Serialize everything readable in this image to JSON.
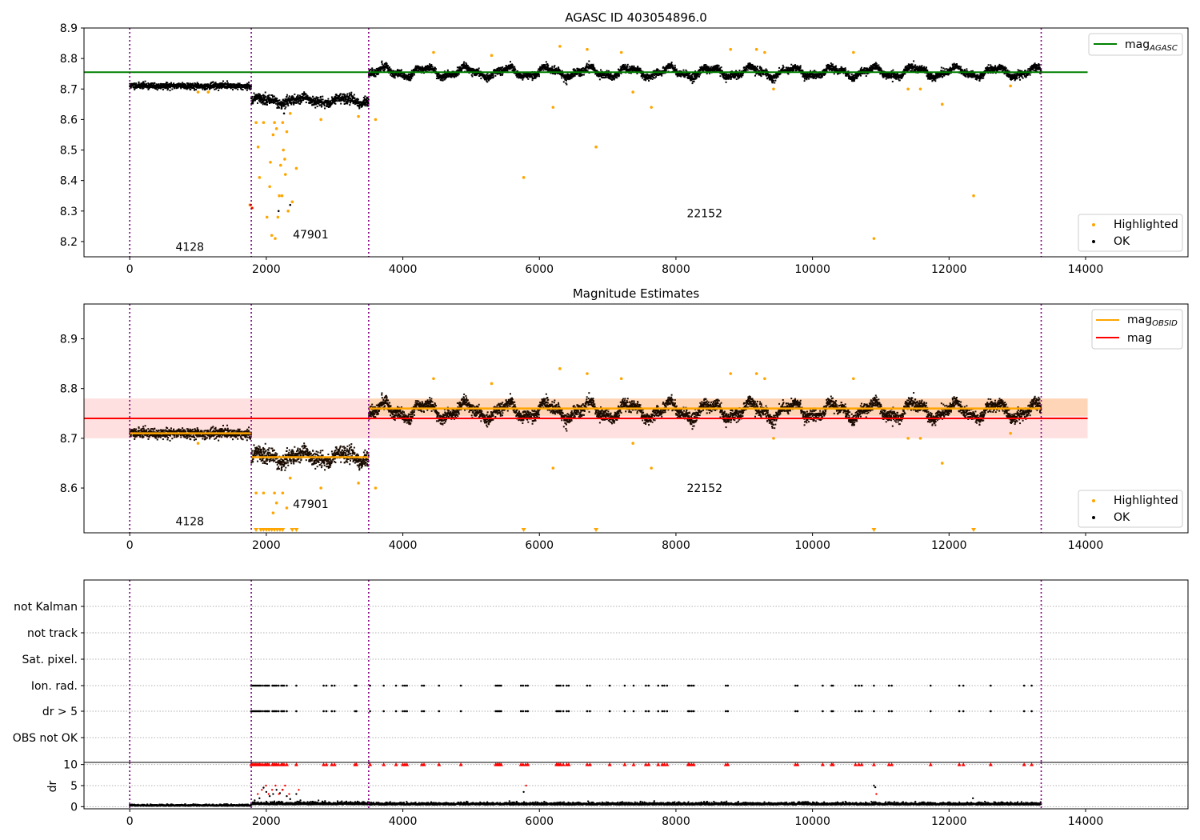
{
  "chart_data": [
    {
      "type": "scatter",
      "title": "AGASC ID 403054896.0",
      "xlim": [
        -670,
        15500
      ],
      "ylim": [
        8.15,
        8.9
      ],
      "x_ticks": [
        0,
        2000,
        4000,
        6000,
        8000,
        10000,
        12000,
        14000
      ],
      "y_ticks": [
        8.2,
        8.3,
        8.4,
        8.5,
        8.6,
        8.7,
        8.8,
        8.9
      ],
      "grid": false,
      "obs_boundaries": [
        0,
        1780,
        3500,
        13350
      ],
      "obs_labels": [
        {
          "text": "4128",
          "x": 880,
          "y": 8.17
        },
        {
          "text": "47901",
          "x": 2650,
          "y": 8.21
        },
        {
          "text": "22152",
          "x": 8420,
          "y": 8.28
        }
      ],
      "mag_agasc": {
        "value": 8.755,
        "x_range": [
          -670,
          14030
        ]
      },
      "obs_segments": [
        {
          "x_start": 0,
          "x_end": 1780,
          "center": 8.71,
          "spread": 0.005,
          "wave_amp": 0.002
        },
        {
          "x_start": 1780,
          "x_end": 3500,
          "center": 8.662,
          "spread": 0.008,
          "wave_amp": 0.012
        },
        {
          "x_start": 3500,
          "x_end": 13350,
          "center": 8.755,
          "spread": 0.006,
          "wave_amp": 0.02
        }
      ],
      "highlighted_points": [
        [
          1760,
          8.32
        ],
        [
          1790,
          8.31
        ],
        [
          1850,
          8.59
        ],
        [
          1880,
          8.51
        ],
        [
          1900,
          8.41
        ],
        [
          1960,
          8.59
        ],
        [
          2010,
          8.28
        ],
        [
          2050,
          8.38
        ],
        [
          2060,
          8.46
        ],
        [
          2080,
          8.22
        ],
        [
          2100,
          8.55
        ],
        [
          2120,
          8.59
        ],
        [
          2130,
          8.21
        ],
        [
          2150,
          8.57
        ],
        [
          2170,
          8.28
        ],
        [
          2190,
          8.35
        ],
        [
          2210,
          8.45
        ],
        [
          2230,
          8.35
        ],
        [
          2240,
          8.59
        ],
        [
          2250,
          8.5
        ],
        [
          2270,
          8.47
        ],
        [
          2280,
          8.42
        ],
        [
          2300,
          8.56
        ],
        [
          2320,
          8.3
        ],
        [
          2350,
          8.62
        ],
        [
          2380,
          8.33
        ],
        [
          2440,
          8.44
        ],
        [
          2800,
          8.6
        ],
        [
          3350,
          8.61
        ],
        [
          3600,
          8.6
        ],
        [
          5770,
          8.41
        ],
        [
          6200,
          8.64
        ],
        [
          6830,
          8.51
        ],
        [
          7370,
          8.69
        ],
        [
          7640,
          8.64
        ],
        [
          9430,
          8.7
        ],
        [
          10900,
          8.21
        ],
        [
          11400,
          8.7
        ],
        [
          11580,
          8.7
        ],
        [
          11900,
          8.65
        ],
        [
          12360,
          8.35
        ],
        [
          12900,
          8.71
        ],
        [
          1000,
          8.69
        ],
        [
          1150,
          8.69
        ],
        [
          6300,
          8.84
        ],
        [
          6700,
          8.83
        ],
        [
          7200,
          8.82
        ],
        [
          9180,
          8.83
        ],
        [
          9300,
          8.82
        ],
        [
          10600,
          8.82
        ],
        [
          4450,
          8.82
        ],
        [
          5300,
          8.81
        ],
        [
          8800,
          8.83
        ]
      ],
      "ok_outliers": [
        [
          2180,
          8.3
        ],
        [
          2260,
          8.62
        ],
        [
          2350,
          8.32
        ]
      ],
      "red_points": [
        [
          1770,
          8.32
        ],
        [
          1795,
          8.31
        ]
      ],
      "legends": [
        {
          "position": "upper right",
          "entries": [
            "mag_AGASC"
          ]
        },
        {
          "position": "lower right",
          "entries": [
            "Highlighted",
            "OK"
          ]
        }
      ],
      "legend_text": {
        "mag_agasc": "mag",
        "mag_agasc_sub": "AGASC",
        "highlighted": "Highlighted",
        "ok": "OK"
      }
    },
    {
      "type": "scatter",
      "title": "Magnitude Estimates",
      "xlim": [
        -670,
        15500
      ],
      "ylim": [
        8.51,
        8.97
      ],
      "x_ticks": [
        0,
        2000,
        4000,
        6000,
        8000,
        10000,
        12000,
        14000
      ],
      "y_ticks": [
        8.6,
        8.7,
        8.8,
        8.9
      ],
      "grid": false,
      "obs_boundaries": [
        0,
        1780,
        3500,
        13350
      ],
      "obs_labels": [
        {
          "text": "4128",
          "x": 880,
          "y": 8.525
        },
        {
          "text": "47901",
          "x": 2650,
          "y": 8.56
        },
        {
          "text": "22152",
          "x": 8420,
          "y": 8.592
        }
      ],
      "mag": {
        "value": 8.74,
        "band": [
          8.7,
          8.78
        ],
        "x_range": [
          -670,
          14030
        ]
      },
      "mag_obsid": [
        {
          "x_start": 0,
          "x_end": 1780,
          "value": 8.71
        },
        {
          "x_start": 1780,
          "x_end": 3500,
          "value": 8.662
        },
        {
          "x_start": 3500,
          "x_end": 13350,
          "value": 8.76
        }
      ],
      "obs_band": {
        "x_start": 3500,
        "x_end": 14030,
        "band": [
          8.745,
          8.78
        ]
      },
      "obs_segments": [
        {
          "x_start": 0,
          "x_end": 1780,
          "center": 8.71,
          "spread": 0.005,
          "wave_amp": 0.002
        },
        {
          "x_start": 1780,
          "x_end": 3500,
          "center": 8.662,
          "spread": 0.008,
          "wave_amp": 0.012
        },
        {
          "x_start": 3500,
          "x_end": 13350,
          "center": 8.755,
          "spread": 0.006,
          "wave_amp": 0.02
        }
      ],
      "highlighted_points": [
        [
          1850,
          8.59
        ],
        [
          1960,
          8.59
        ],
        [
          2100,
          8.55
        ],
        [
          2120,
          8.59
        ],
        [
          2150,
          8.57
        ],
        [
          2240,
          8.59
        ],
        [
          2300,
          8.56
        ],
        [
          2350,
          8.62
        ],
        [
          2800,
          8.6
        ],
        [
          3350,
          8.61
        ],
        [
          3600,
          8.6
        ],
        [
          6200,
          8.64
        ],
        [
          7370,
          8.69
        ],
        [
          7640,
          8.64
        ],
        [
          9430,
          8.7
        ],
        [
          11400,
          8.7
        ],
        [
          11580,
          8.7
        ],
        [
          11900,
          8.65
        ],
        [
          12900,
          8.71
        ],
        [
          1000,
          8.69
        ],
        [
          6300,
          8.84
        ],
        [
          6700,
          8.83
        ],
        [
          7200,
          8.82
        ],
        [
          9180,
          8.83
        ],
        [
          9300,
          8.82
        ],
        [
          10600,
          8.82
        ],
        [
          4450,
          8.82
        ],
        [
          5300,
          8.81
        ],
        [
          8800,
          8.83
        ]
      ],
      "clipped_markers_x": [
        1850,
        1920,
        1960,
        2000,
        2040,
        2080,
        2120,
        2160,
        2200,
        2240,
        2380,
        2440,
        5770,
        6830,
        10900,
        12360
      ],
      "legends": [
        {
          "position": "upper right",
          "entries": [
            "mag_OBSID",
            "mag"
          ]
        },
        {
          "position": "lower right",
          "entries": [
            "Highlighted",
            "OK"
          ]
        }
      ],
      "legend_text": {
        "mag_obsid": "mag",
        "mag_obsid_sub": "OBSID",
        "mag": "mag",
        "highlighted": "Highlighted",
        "ok": "OK"
      }
    },
    {
      "type": "scatter",
      "title": "",
      "xlim": [
        -670,
        15500
      ],
      "categories": [
        "not Kalman",
        "not track",
        "Sat. pixel.",
        "Ion. rad.",
        "dr > 5",
        "OBS not OK"
      ],
      "obs_boundaries": [
        0,
        1780,
        3500,
        13350
      ],
      "flag_x": [
        1780,
        1800,
        1820,
        1840,
        1860,
        1880,
        1900,
        1920,
        1950,
        1980,
        2000,
        2020,
        2040,
        2090,
        2110,
        2130,
        2150,
        2180,
        2220,
        2240,
        2260,
        2300,
        2440,
        2840,
        2880,
        2960,
        3000,
        3300,
        3320,
        3520,
        3720,
        3900,
        4000,
        4030,
        4060,
        4280,
        4310,
        4530,
        4850,
        5360,
        5380,
        5400,
        5420,
        5440,
        5730,
        5760,
        5800,
        5830,
        6250,
        6270,
        6290,
        6310,
        6350,
        6400,
        6430,
        6700,
        6740,
        7030,
        7250,
        7380,
        7560,
        7600,
        7740,
        7800,
        7830,
        7870,
        8180,
        8200,
        8230,
        8260,
        8730,
        8760,
        9750,
        9780,
        10150,
        10280,
        10300,
        10630,
        10680,
        10720,
        10900,
        11120,
        11160,
        11730,
        12150,
        12210,
        12610,
        13100,
        13210
      ],
      "rows_with_flags": [
        "Ion. rad.",
        "dr > 5"
      ]
    },
    {
      "type": "scatter",
      "title": "",
      "ylabel": "dr",
      "xlim": [
        -670,
        15500
      ],
      "ylim": [
        -0.5,
        10.5
      ],
      "y_ticks": [
        0,
        5,
        10
      ],
      "x_ticks": [
        0,
        2000,
        4000,
        6000,
        8000,
        10000,
        12000,
        14000
      ],
      "obs_boundaries": [
        0,
        1780,
        3500,
        13350
      ],
      "dr_clip_value": 10,
      "dr_clip_x": [
        1780,
        1800,
        1820,
        1840,
        1860,
        1880,
        1900,
        1920,
        1950,
        1980,
        2000,
        2020,
        2040,
        2090,
        2110,
        2130,
        2150,
        2180,
        2220,
        2240,
        2260,
        2300,
        2440,
        2840,
        2880,
        2960,
        3000,
        3300,
        3320,
        3520,
        3720,
        3900,
        4000,
        4030,
        4060,
        4280,
        4310,
        4530,
        4850,
        5360,
        5380,
        5400,
        5420,
        5440,
        5730,
        5760,
        5800,
        5830,
        6250,
        6270,
        6290,
        6310,
        6350,
        6400,
        6430,
        6700,
        6740,
        7030,
        7250,
        7380,
        7560,
        7600,
        7740,
        7800,
        7830,
        7870,
        8180,
        8200,
        8230,
        8260,
        8730,
        8760,
        9750,
        9780,
        10150,
        10280,
        10300,
        10630,
        10680,
        10720,
        10900,
        11120,
        11160,
        11730,
        12150,
        12210,
        12610,
        13100,
        13210
      ],
      "dr_segments": [
        {
          "x_start": 0,
          "x_end": 1780,
          "level": 0.2,
          "spread": 0.15
        },
        {
          "x_start": 1780,
          "x_end": 3500,
          "level": 0.5,
          "spread": 0.3
        },
        {
          "x_start": 3500,
          "x_end": 13350,
          "level": 0.45,
          "spread": 0.25
        }
      ],
      "dr_scatter": [
        [
          1830,
          1.5
        ],
        [
          1900,
          2.0
        ],
        [
          1960,
          4.5
        ],
        [
          2000,
          3.5
        ],
        [
          2050,
          2.5
        ],
        [
          2100,
          3.0
        ],
        [
          2150,
          4.0
        ],
        [
          2200,
          3.2
        ],
        [
          2240,
          4.0
        ],
        [
          2300,
          2.5
        ],
        [
          2350,
          1.8
        ],
        [
          2440,
          3.0
        ],
        [
          2000,
          1.2
        ],
        [
          2500,
          1.5
        ],
        [
          5770,
          3.5
        ],
        [
          10900,
          5.0
        ],
        [
          10920,
          4.6
        ],
        [
          12350,
          2.0
        ]
      ],
      "dr_red_x": [
        1840,
        1900,
        1960,
        2000,
        2050,
        2100,
        2150,
        2200,
        2240,
        2300,
        2440,
        5770,
        10900
      ]
    }
  ]
}
